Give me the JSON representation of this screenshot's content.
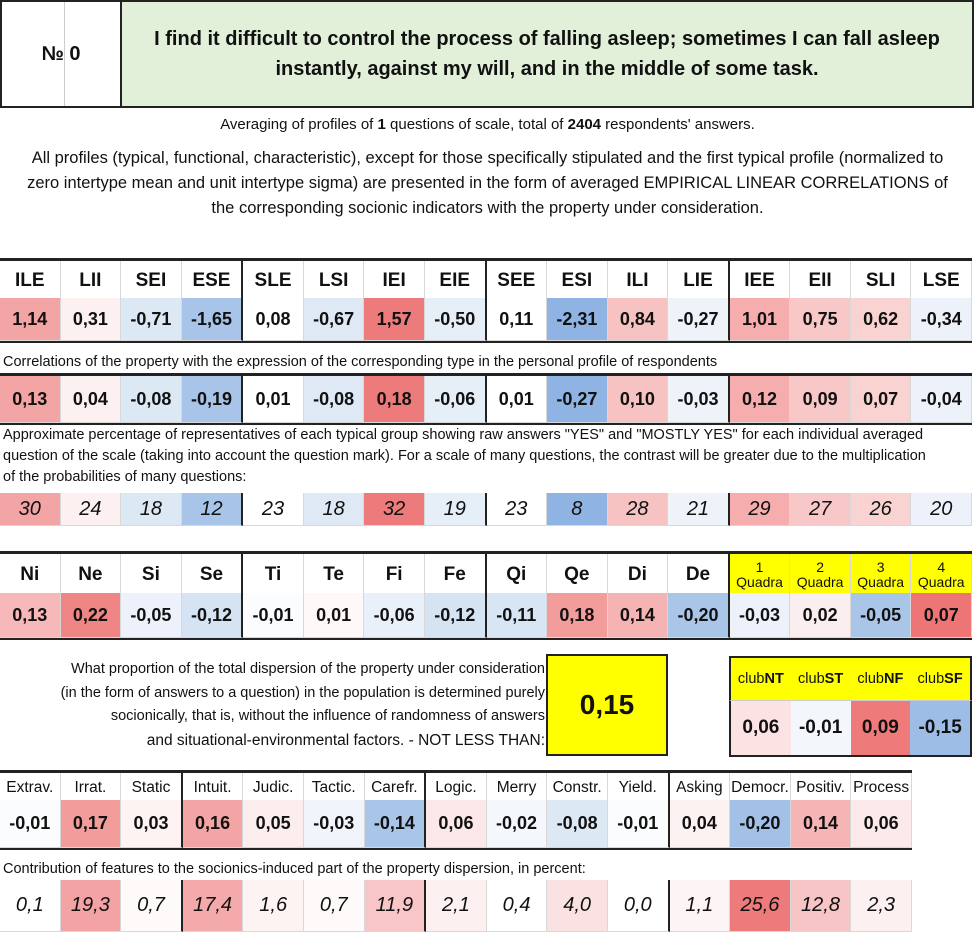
{
  "header": {
    "number_label": "№ 0",
    "question": "I find it difficult to control the process of falling asleep; sometimes I can fall asleep instantly, against my will, and in the middle of some task."
  },
  "summary": {
    "prefix": "Averaging of profiles of ",
    "questions": "1",
    "middle": " questions of scale, total of ",
    "respondents": "2404",
    "suffix": " respondents' answers."
  },
  "description": "All profiles (typical, functional, characteristic), except for those specifically stipulated and the first typical profile (normalized to zero intertype mean and unit intertype sigma) are presented in the form of averaged EMPIRICAL LINEAR CORRELATIONS of the corresponding socionic indicators with the property under consideration.",
  "types": {
    "headers": [
      "ILE",
      "LII",
      "SEI",
      "ESE",
      "SLE",
      "LSI",
      "IEI",
      "EIE",
      "SEE",
      "ESI",
      "ILI",
      "LIE",
      "IEE",
      "EII",
      "SLI",
      "LSE"
    ],
    "profile": [
      "1,14",
      "0,31",
      "-0,71",
      "-1,65",
      "0,08",
      "-0,67",
      "1,57",
      "-0,50",
      "0,11",
      "-2,31",
      "0,84",
      "-0,27",
      "1,01",
      "0,75",
      "0,62",
      "-0,34"
    ],
    "profile_colors": [
      "#f3a4a4",
      "#fdf0f0",
      "#dde8f5",
      "#a8c4e8",
      "#ffffff",
      "#dfe9f5",
      "#ee7b7b",
      "#e6eef8",
      "#ffffff",
      "#8fb3e2",
      "#f7c2c2",
      "#eef3fa",
      "#f5adad",
      "#f8c8c8",
      "#f9d2d2",
      "#edf2fa"
    ],
    "corr_note": "Correlations of the property with the expression of the corresponding type in the personal profile of respondents",
    "corr": [
      "0,13",
      "0,04",
      "-0,08",
      "-0,19",
      "0,01",
      "-0,08",
      "0,18",
      "-0,06",
      "0,01",
      "-0,27",
      "0,10",
      "-0,03",
      "0,12",
      "0,09",
      "0,07",
      "-0,04"
    ],
    "corr_colors": [
      "#f3a4a4",
      "#fdf0f0",
      "#dde8f5",
      "#a8c4e8",
      "#ffffff",
      "#dfe9f5",
      "#ee7b7b",
      "#e6eef8",
      "#ffffff",
      "#8fb3e2",
      "#f7c2c2",
      "#eef3fa",
      "#f5adad",
      "#f8c8c8",
      "#f9d2d2",
      "#edf2fa"
    ],
    "pct_note": "Approximate percentage of representatives of each typical group showing raw answers \"YES\" and \"MOSTLY YES\" for each individual averaged question of the scale (taking into account the question mark). For a scale of many questions, the contrast will be greater due to the multiplication of the probabilities of many questions:",
    "pct": [
      "30",
      "24",
      "18",
      "12",
      "23",
      "18",
      "32",
      "19",
      "23",
      "8",
      "28",
      "21",
      "29",
      "27",
      "26",
      "20"
    ],
    "pct_colors": [
      "#f3a4a4",
      "#fdf0f0",
      "#dde8f5",
      "#a8c4e8",
      "#ffffff",
      "#dfe9f5",
      "#ee7b7b",
      "#e6eef8",
      "#ffffff",
      "#8fb3e2",
      "#f7c2c2",
      "#eef3fa",
      "#f5adad",
      "#f8c8c8",
      "#f9d2d2",
      "#edf2fa"
    ]
  },
  "functions": {
    "headers": [
      "Ni",
      "Ne",
      "Si",
      "Se",
      "Ti",
      "Te",
      "Fi",
      "Fe",
      "Qi",
      "Qe",
      "Di",
      "De"
    ],
    "values": [
      "0,13",
      "0,22",
      "-0,05",
      "-0,12",
      "-0,01",
      "0,01",
      "-0,06",
      "-0,12",
      "-0,11",
      "0,18",
      "0,14",
      "-0,20"
    ],
    "colors": [
      "#f6b8b8",
      "#ef8585",
      "#edf2fa",
      "#d6e3f3",
      "#fafcfe",
      "#fef8f8",
      "#e9f0f9",
      "#d6e3f3",
      "#d8e5f4",
      "#f29c9c",
      "#f5b3b3",
      "#a9c5e8"
    ],
    "quadra_nums": [
      "1",
      "2",
      "3",
      "4"
    ],
    "quadra_label": "Quadra",
    "quadra_values": [
      "-0,03",
      "0,02",
      "-0,05",
      "0,07"
    ],
    "quadra_colors": [
      "#edf2fa",
      "#fbeeee",
      "#a9c5e8",
      "#ee7575"
    ]
  },
  "proportion": {
    "text": "What proportion of the total dispersion of the property under consideration (in the form of answers to a question) in the population is determined purely socionically, that is, without the influence of randomness of answers",
    "last_line": "and situational-environmental factors. - NOT LESS THAN:",
    "value": "0,15"
  },
  "clubs": {
    "prefix": "club",
    "names": [
      "NT",
      "ST",
      "NF",
      "SF"
    ],
    "values": [
      "0,06",
      "-0,01",
      "0,09",
      "-0,15"
    ],
    "colors": [
      "#fbe3e3",
      "#f3f7fc",
      "#ef7a7a",
      "#9ebde6"
    ]
  },
  "features": {
    "headers": [
      "Extrav.",
      "Irrat.",
      "Static",
      "Intuit.",
      "Judic.",
      "Tactic.",
      "Carefr.",
      "Logic.",
      "Merry",
      "Constr.",
      "Yield.",
      "Asking",
      "Democr.",
      "Positiv.",
      "Process"
    ],
    "values": [
      "-0,01",
      "0,17",
      "0,03",
      "0,16",
      "0,05",
      "-0,03",
      "-0,14",
      "0,06",
      "-0,02",
      "-0,08",
      "-0,01",
      "0,04",
      "-0,20",
      "0,14",
      "0,06"
    ],
    "colors": [
      "#fafcfe",
      "#f29c9c",
      "#fdf3f3",
      "#f3a4a4",
      "#fceeee",
      "#f1f5fb",
      "#a9c5e8",
      "#fce8e8",
      "#f4f7fc",
      "#dde8f5",
      "#fafcfe",
      "#fdf2f2",
      "#a3c1e7",
      "#f6b5b5",
      "#fce9e9"
    ],
    "contrib_note": "Contribution of features to the socionics-induced part of the property dispersion, in percent:",
    "contrib": [
      "0,1",
      "19,3",
      "0,7",
      "17,4",
      "1,6",
      "0,7",
      "11,9",
      "2,1",
      "0,4",
      "4,0",
      "0,0",
      "1,1",
      "25,6",
      "12,8",
      "2,3"
    ],
    "contrib_colors": [
      "#ffffff",
      "#f3a3a3",
      "#fefafa",
      "#f4aaaa",
      "#fdf3f3",
      "#fefafa",
      "#f8c6c6",
      "#fcf0f0",
      "#ffffff",
      "#fae2e2",
      "#ffffff",
      "#fdf5f5",
      "#ee7b7b",
      "#f7c5c5",
      "#fcf0f0"
    ]
  }
}
